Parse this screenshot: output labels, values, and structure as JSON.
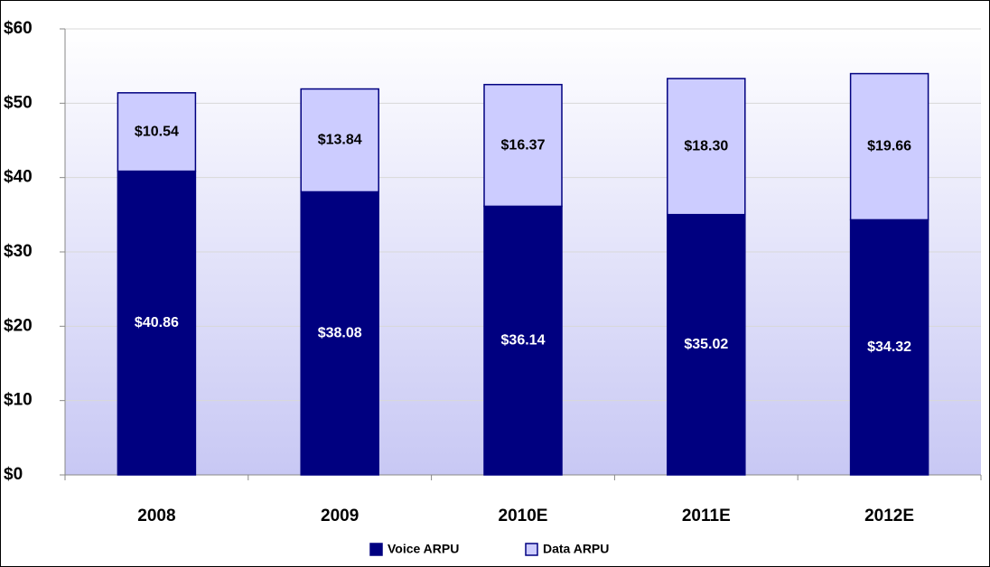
{
  "chart_data": {
    "type": "stacked_bar",
    "categories": [
      "2008",
      "2009",
      "2010E",
      "2011E",
      "2012E"
    ],
    "series": [
      {
        "name": "Voice ARPU",
        "color": "#000080",
        "values": [
          40.86,
          38.08,
          36.14,
          35.02,
          34.32
        ],
        "value_labels": [
          "$40.86",
          "$38.08",
          "$36.14",
          "$35.02",
          "$34.32"
        ]
      },
      {
        "name": "Data ARPU",
        "color": "#ccccff",
        "values": [
          10.54,
          13.84,
          16.37,
          18.3,
          19.66
        ],
        "value_labels": [
          "$10.54",
          "$13.84",
          "$16.37",
          "$18.30",
          "$19.66"
        ]
      }
    ],
    "ylim": [
      0,
      60
    ],
    "yticks": [
      {
        "value": 0,
        "label": "$0"
      },
      {
        "value": 10,
        "label": "$10"
      },
      {
        "value": 20,
        "label": "$20"
      },
      {
        "value": 30,
        "label": "$30"
      },
      {
        "value": 40,
        "label": "$40"
      },
      {
        "value": 50,
        "label": "$50"
      },
      {
        "value": 60,
        "label": "$60"
      }
    ],
    "grid": true,
    "legend": "bottom"
  }
}
